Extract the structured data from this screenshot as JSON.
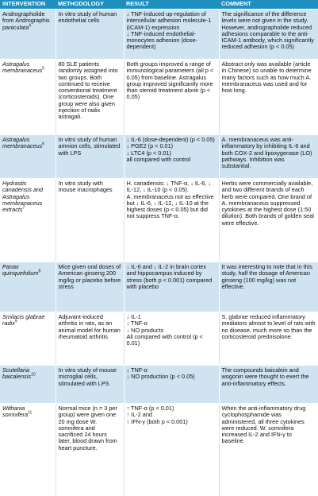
{
  "table": {
    "header": [
      "INTERVENTION",
      "METHODOLOGY",
      "RESULT",
      "COMMENT"
    ],
    "rows": [
      {
        "intervention": {
          "name": "Andrographolide from Andrographis paniculata",
          "ref": "4"
        },
        "methodology": [
          "In vitro study of human endothelial cells"
        ],
        "result": [
          "↓ TNF-induced up-regulation of intercellular adhesion molecule-1 (ICAM-1) expression",
          "↓ TNF-induced endothelial-monocytes adhesion (dose-dependent)"
        ],
        "comment": [
          "The significance of the difference levels were not given in the study. However, andrographolide reduced adhesions comparable to the anti-ICAM-1 antibody, which significantly reduced adhesion (p < 0.05)"
        ]
      },
      {
        "intervention": {
          "name": "Astragalus membranaceus",
          "ref": "5"
        },
        "methodology": [
          "80 SLE patients randomly assigned into two groups. Both continued to receive conventional treatment (corticosteroids). One group were also given injection of radix astragali."
        ],
        "result": [
          "Both groups improved a range of immunological parameters (all p < 0.05) from baseline. Astragalus group improved significantly more than steroid treatment alone (p < 0.05)"
        ],
        "comment": [
          "Abstract only was available (article in Chinese) so unable to determine many factors such as how much A. membranaceus was used and for how long."
        ]
      },
      {
        "intervention": {
          "name": "Astragalus membranaceus",
          "ref": "6"
        },
        "methodology": [
          "In vitro study of human amnion cells, stimulated with LPS"
        ],
        "result": [
          "↓ IL-6 (dose-dependent) (p < 0.05)",
          "↓ PGE2 (p < 0.01)",
          "↓ LTC4 (p < 0.01)",
          "all compared with control"
        ],
        "comment": [
          "A. membranaceus was anti-inflammatory by inhibiting IL-6 and both COX-2 and lipoxygenase (LO) pathways. Inhibition was substantial."
        ]
      },
      {
        "intervention": {
          "name": "Hydrastis canadensis and Astragalus membranaceus extracts",
          "ref": "7"
        },
        "methodology": [
          "In vitro study with mouse macrophages"
        ],
        "result": [
          "H. canadensis: ↓ TNF-α, ↓ IL-6, ↓ IL-12, ↓ IL-10 (p < 0.05).",
          "A. membranaceus not as effective but ↓ IL-6, ↓ IL-12, ↓ IL-10 at the highest doses (p < 0.05) but did not suppress TNF-α."
        ],
        "comment": [
          "Herbs were commercially available, and two different brands of each herb were compared. One brand of A. membranaceus suppressed cytokines at the highest dose (1:50 dilution). Both brands of golden seal were effective."
        ]
      },
      {
        "intervention": {
          "name": "Panax quinquefolium",
          "ref": "8"
        },
        "methodology": [
          "Mice given oral doses of American ginseng 200 mg/kg or placebo before stress"
        ],
        "result": [
          "↓ IL-6 and ↓ IL-2 in brain cortex and hippocampus induced by stress (both p < 0.001) compared with placebo"
        ],
        "comment": [
          "It was interesting to note that in this study, half the dosage of American ginseng (100 mg/kg) was not effective."
        ]
      },
      {
        "intervention": {
          "name": "Smilacis glabrae radix",
          "ref": "9"
        },
        "methodology": [
          "Adjuvant-induced arthritis in rats, as an animal model for human rheumatoid arthritis"
        ],
        "result": [
          "↓ IL-1",
          "↓ TNF-α",
          "↓ NO products",
          "All compared with control (p < 0.01)"
        ],
        "comment": [
          "S. glabrae reduced inflammatory mediators almost to level of rats with no disease, much more so than the corticosteroid prednisolone."
        ]
      },
      {
        "intervention": {
          "name": "Scutellaria baicalensis",
          "ref": "10"
        },
        "methodology": [
          "In vitro study of mouse microglial cells, stimulated with LPS"
        ],
        "result": [
          "↓ TNF-α",
          "↓ NO production (p < 0.05)"
        ],
        "comment": [
          "The compounds baicalein and wogonin were thought to exert the anti-inflammatory effects."
        ]
      },
      {
        "intervention": {
          "name": "Withania somnifera",
          "ref": "11"
        },
        "methodology": [
          "Normal mice (n = 3 per group) were given one 20 mg dose W. somnifera and sacrificed 24 hours later, blood drawn from heart puncture."
        ],
        "result": [
          "↑ TNF-α (p < 0.01)",
          "↑ IL-2 and",
          "↑ IFN-γ (both p < 0.001)"
        ],
        "comment": [
          "When the anti-inflammatory drug cyclophosphamide was administered, all three cytokines were reduced. W. somnifera increased IL-2 and IFN-γ to baseline."
        ]
      }
    ]
  }
}
